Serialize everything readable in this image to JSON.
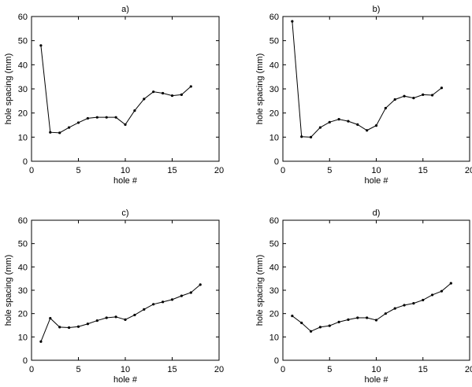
{
  "chart_data": [
    {
      "type": "line",
      "title": "a)",
      "xlabel": "hole #",
      "ylabel": "hole spacing (mm)",
      "xlim": [
        0,
        20
      ],
      "ylim": [
        0,
        60
      ],
      "xticks": [
        0,
        5,
        10,
        15,
        20
      ],
      "yticks": [
        0,
        10,
        20,
        30,
        40,
        50,
        60
      ],
      "grid": false,
      "color": "#000000",
      "x": [
        1,
        2,
        3,
        4,
        5,
        6,
        7,
        8,
        9,
        10,
        11,
        12,
        13,
        14,
        15,
        16,
        17
      ],
      "y": [
        48,
        12,
        11.8,
        14,
        16,
        17.8,
        18.2,
        18.2,
        18.2,
        15.2,
        21,
        25.8,
        28.8,
        28.2,
        27.2,
        27.6,
        31
      ]
    },
    {
      "type": "line",
      "title": "b)",
      "xlabel": "hole #",
      "ylabel": "hole spacing (mm)",
      "xlim": [
        0,
        20
      ],
      "ylim": [
        0,
        60
      ],
      "xticks": [
        0,
        5,
        10,
        15,
        20
      ],
      "yticks": [
        0,
        10,
        20,
        30,
        40,
        50,
        60
      ],
      "grid": false,
      "color": "#000000",
      "x": [
        1,
        2,
        3,
        4,
        5,
        6,
        7,
        8,
        9,
        10,
        11,
        12,
        13,
        14,
        15,
        16,
        17
      ],
      "y": [
        58,
        10.2,
        10,
        14,
        16.2,
        17.4,
        16.6,
        15.2,
        12.8,
        14.8,
        22,
        25.6,
        27,
        26.2,
        27.6,
        27.4,
        30.4
      ]
    },
    {
      "type": "line",
      "title": "c)",
      "xlabel": "hole #",
      "ylabel": "hole spacing (mm)",
      "xlim": [
        0,
        20
      ],
      "ylim": [
        0,
        60
      ],
      "xticks": [
        0,
        5,
        10,
        15,
        20
      ],
      "yticks": [
        0,
        10,
        20,
        30,
        40,
        50,
        60
      ],
      "grid": false,
      "color": "#000000",
      "x": [
        1,
        2,
        3,
        4,
        5,
        6,
        7,
        8,
        9,
        10,
        11,
        12,
        13,
        14,
        15,
        16,
        17,
        18
      ],
      "y": [
        8,
        18,
        14.2,
        14,
        14.4,
        15.6,
        17,
        18.2,
        18.6,
        17.4,
        19.4,
        21.8,
        24,
        25,
        26,
        27.6,
        29,
        32.4
      ]
    },
    {
      "type": "line",
      "title": "d)",
      "xlabel": "hole #",
      "ylabel": "hole spacing (mm)",
      "xlim": [
        0,
        20
      ],
      "ylim": [
        0,
        60
      ],
      "xticks": [
        0,
        5,
        10,
        15,
        20
      ],
      "yticks": [
        0,
        10,
        20,
        30,
        40,
        50,
        60
      ],
      "grid": false,
      "color": "#000000",
      "x": [
        1,
        2,
        3,
        4,
        5,
        6,
        7,
        8,
        9,
        10,
        11,
        12,
        13,
        14,
        15,
        16,
        17,
        18
      ],
      "y": [
        19,
        16,
        12.4,
        14.2,
        14.8,
        16.4,
        17.4,
        18.2,
        18.2,
        17.2,
        20,
        22.2,
        23.6,
        24.4,
        25.8,
        28,
        29.6,
        33
      ]
    }
  ]
}
